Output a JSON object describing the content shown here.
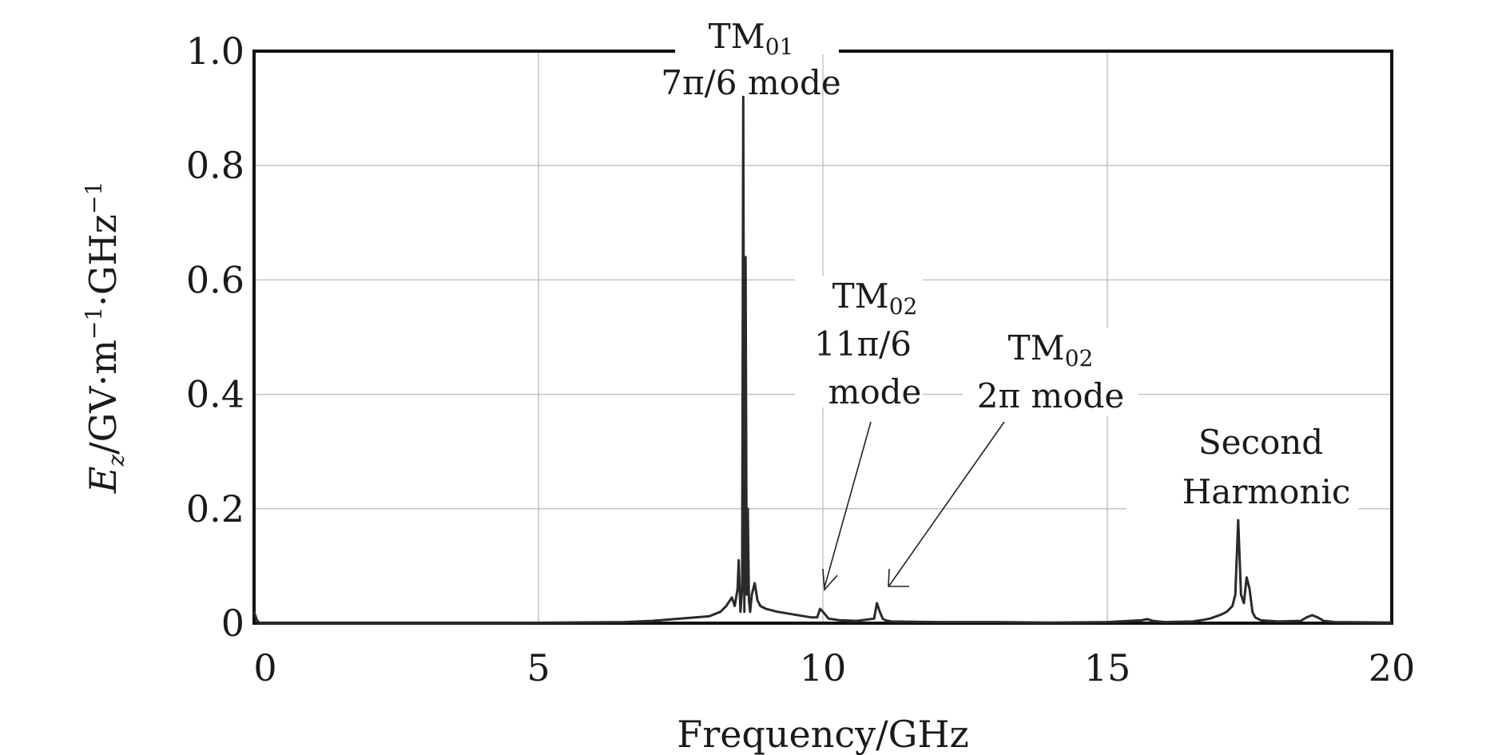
{
  "chart_data": {
    "type": "line",
    "xlabel": "Frequency/GHz",
    "ylabel": {
      "symbol": "E",
      "subscript": "z",
      "rest": "/GV·m",
      "exp1": "−1",
      "mid": "·GHz",
      "exp2": "−1"
    },
    "xlim": [
      0,
      20
    ],
    "ylim": [
      0,
      1.0
    ],
    "x_ticks": [
      0,
      5,
      10,
      15,
      20
    ],
    "x_tick_labels": [
      "0",
      "5",
      "10",
      "15",
      "20"
    ],
    "y_ticks": [
      0,
      0.2,
      0.4,
      0.6,
      0.8,
      1.0
    ],
    "y_tick_labels": [
      "0",
      "0.2",
      "0.4",
      "0.6",
      "0.8",
      "1.0"
    ],
    "grid": true,
    "series": [
      {
        "x": [
          0.0,
          0.05,
          0.1,
          2.0,
          4.0,
          6.5,
          7.0,
          7.5,
          8.0,
          8.2,
          8.3,
          8.4,
          8.45,
          8.5,
          8.52,
          8.55,
          8.58,
          8.6,
          8.62,
          8.64,
          8.66,
          8.68,
          8.7,
          8.72,
          8.75,
          8.8,
          8.85,
          8.9,
          9.0,
          9.2,
          9.5,
          9.8,
          9.9,
          9.95,
          10.0,
          10.1,
          10.3,
          10.6,
          10.9,
          10.95,
          11.0,
          11.05,
          11.1,
          11.2,
          12.0,
          13.0,
          14.0,
          15.0,
          15.6,
          15.7,
          15.8,
          16.0,
          16.5,
          16.7,
          16.8,
          17.0,
          17.1,
          17.2,
          17.25,
          17.3,
          17.35,
          17.4,
          17.45,
          17.5,
          17.55,
          17.6,
          17.7,
          18.0,
          18.4,
          18.5,
          18.6,
          18.7,
          18.8,
          19.0,
          20.0
        ],
        "y": [
          0.02,
          0.005,
          0.0,
          0.0,
          0.0,
          0.002,
          0.004,
          0.008,
          0.012,
          0.02,
          0.03,
          0.045,
          0.03,
          0.06,
          0.11,
          0.02,
          0.06,
          0.92,
          0.02,
          0.64,
          0.05,
          0.2,
          0.04,
          0.02,
          0.05,
          0.07,
          0.04,
          0.03,
          0.025,
          0.02,
          0.015,
          0.01,
          0.01,
          0.025,
          0.02,
          0.008,
          0.005,
          0.004,
          0.008,
          0.035,
          0.02,
          0.008,
          0.005,
          0.003,
          0.002,
          0.002,
          0.001,
          0.002,
          0.005,
          0.007,
          0.004,
          0.002,
          0.003,
          0.006,
          0.008,
          0.015,
          0.02,
          0.03,
          0.05,
          0.18,
          0.05,
          0.035,
          0.08,
          0.06,
          0.02,
          0.01,
          0.005,
          0.003,
          0.004,
          0.01,
          0.014,
          0.01,
          0.004,
          0.002,
          0.001
        ]
      }
    ],
    "annotations": [
      {
        "id": "tm01",
        "lines": [
          {
            "pre": "TM",
            "sub": "01",
            "post": ""
          },
          {
            "pre": "7π/6 mode",
            "sub": "",
            "post": ""
          }
        ]
      },
      {
        "id": "tm02a",
        "lines": [
          {
            "pre": "TM",
            "sub": "02",
            "post": ""
          },
          {
            "pre": "11π/6",
            "sub": "",
            "post": ""
          },
          {
            "pre": "mode",
            "sub": "",
            "post": ""
          }
        ],
        "points_to_x": 9.95
      },
      {
        "id": "tm02b",
        "lines": [
          {
            "pre": "TM",
            "sub": "02",
            "post": ""
          },
          {
            "pre": "2π mode",
            "sub": "",
            "post": ""
          }
        ],
        "points_to_x": 11.1
      },
      {
        "id": "harm",
        "lines": [
          {
            "pre": "Second",
            "sub": "",
            "post": ""
          },
          {
            "pre": "Harmonic",
            "sub": "",
            "post": ""
          }
        ]
      }
    ]
  }
}
